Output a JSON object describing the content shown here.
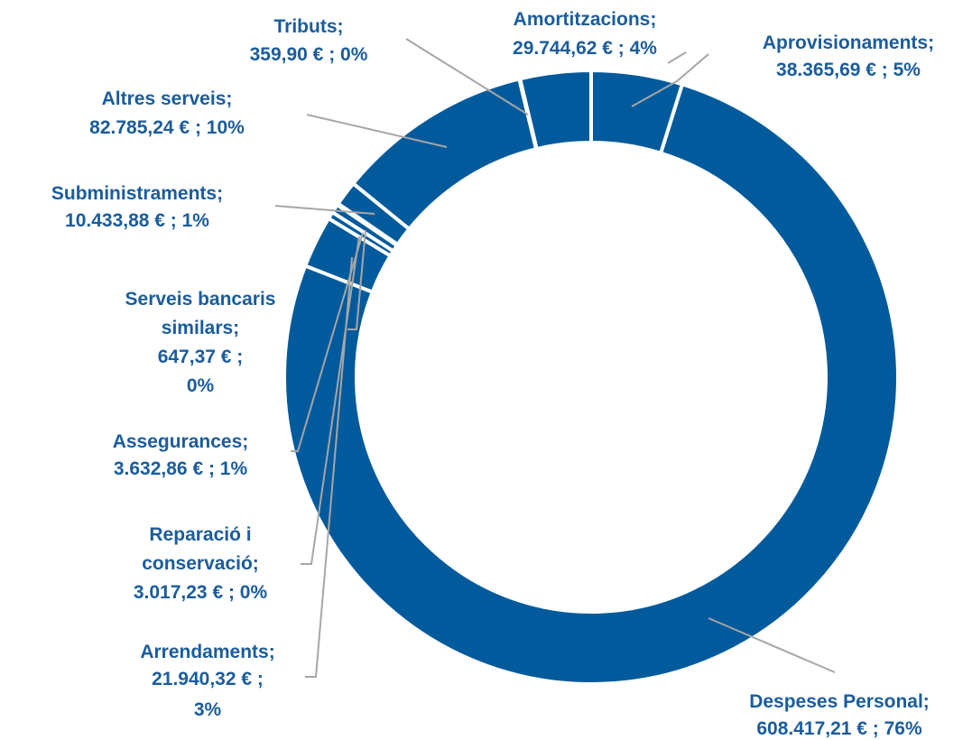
{
  "chart_data": {
    "type": "donut",
    "categories": [
      "Aprovisionaments;",
      "Despeses Personal;",
      "Arrendaments;",
      "Reparació i conservació;",
      "Assegurances;",
      "Serveis bancaris similars;",
      "Subministraments;",
      "Altres serveis;",
      "Tributs;",
      "Amortitzacions;"
    ],
    "values": [
      38365.69,
      608417.21,
      21940.32,
      3017.23,
      3632.86,
      647.37,
      10433.88,
      82785.24,
      359.9,
      29744.62
    ],
    "value_labels": [
      "38.365,69 € ; 5%",
      "608.417,21 € ; 76%",
      "21.940,32 € ; 3%",
      "3.017,23 € ; 0%",
      "3.632,86 € ; 1%",
      "647,37 € ; 0%",
      "10.433,88 € ; 1%",
      "82.785,24 € ; 10%",
      "359,90 € ; 0%",
      "29.744,62 € ; 4%"
    ],
    "color": "#005a9c"
  }
}
